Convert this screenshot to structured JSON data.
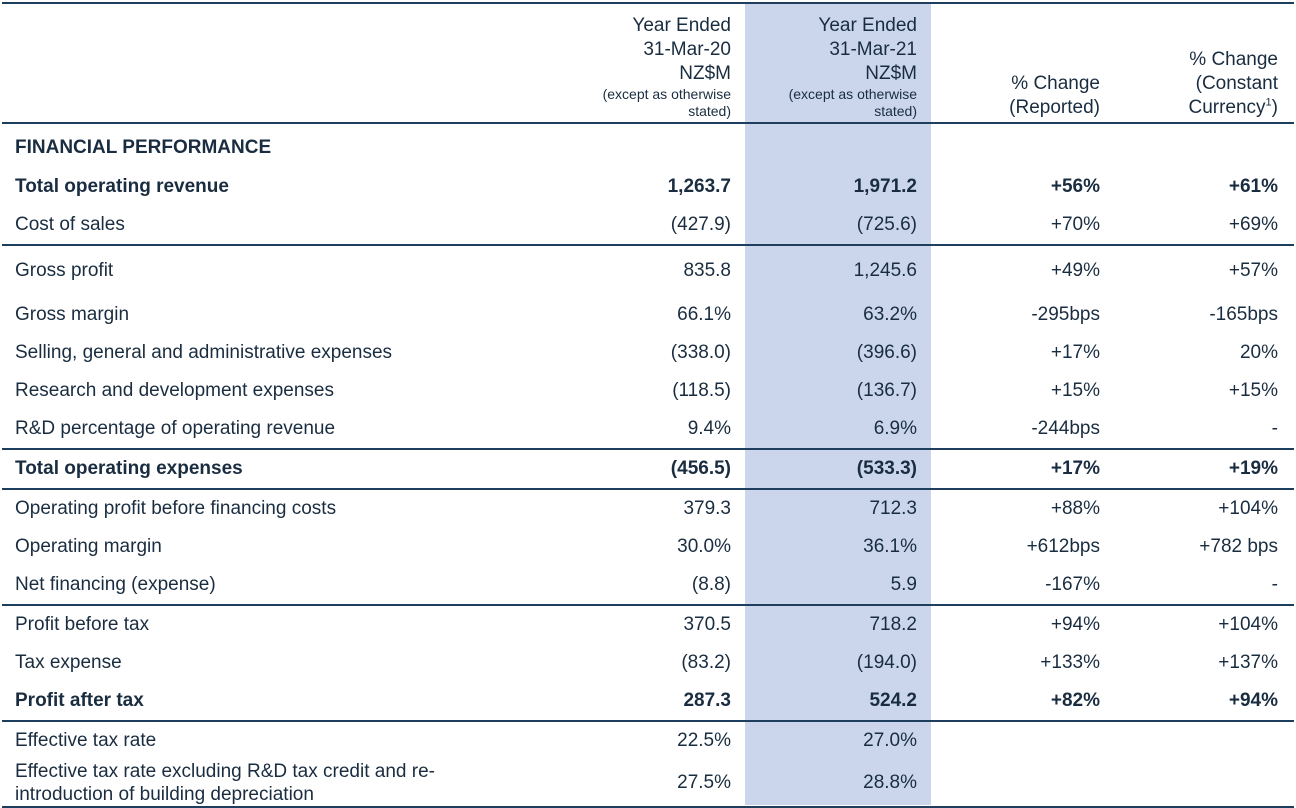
{
  "header": {
    "col_2020": {
      "l1": "Year Ended",
      "l2": "31-Mar-20",
      "l3": "NZ$M",
      "s1": "(except as otherwise",
      "s2": "stated)"
    },
    "col_2021": {
      "l1": "Year Ended",
      "l2": "31-Mar-21",
      "l3": "NZ$M",
      "s1": "(except as otherwise",
      "s2": "stated)"
    },
    "col_reported": {
      "l1": "% Change",
      "l2": "(Reported)"
    },
    "col_constant": {
      "l1": "% Change",
      "l2": "(Constant",
      "l3": "Currency",
      "sup": "1",
      "l3_end": ")"
    }
  },
  "section_title": "FINANCIAL PERFORMANCE",
  "rows": [
    {
      "label": "Total operating revenue",
      "y2020": "1,263.7",
      "y2021": "1,971.2",
      "reported": "+56%",
      "constant": "+61%"
    },
    {
      "label": "Cost of sales",
      "y2020": "(427.9)",
      "y2021": "(725.6)",
      "reported": "+70%",
      "constant": "+69%"
    },
    {
      "label": "Gross profit",
      "y2020": "835.8",
      "y2021": "1,245.6",
      "reported": "+49%",
      "constant": "+57%"
    },
    {
      "label": "Gross margin",
      "y2020": "66.1%",
      "y2021": "63.2%",
      "reported": "-295bps",
      "constant": "-165bps"
    },
    {
      "label": "Selling, general and administrative expenses",
      "y2020": "(338.0)",
      "y2021": "(396.6)",
      "reported": "+17%",
      "constant": "20%"
    },
    {
      "label": "Research and development expenses",
      "y2020": "(118.5)",
      "y2021": "(136.7)",
      "reported": "+15%",
      "constant": "+15%"
    },
    {
      "label": "R&D percentage of operating revenue",
      "y2020": "9.4%",
      "y2021": "6.9%",
      "reported": "-244bps",
      "constant": "-"
    },
    {
      "label": "Total operating expenses",
      "y2020": "(456.5)",
      "y2021": "(533.3)",
      "reported": "+17%",
      "constant": "+19%"
    },
    {
      "label": "Operating profit before financing costs",
      "y2020": "379.3",
      "y2021": "712.3",
      "reported": "+88%",
      "constant": "+104%"
    },
    {
      "label": "Operating margin",
      "y2020": "30.0%",
      "y2021": "36.1%",
      "reported": "+612bps",
      "constant": "+782 bps"
    },
    {
      "label": "Net financing (expense)",
      "y2020": "(8.8)",
      "y2021": "5.9",
      "reported": "-167%",
      "constant": "-"
    },
    {
      "label": "Profit before tax",
      "y2020": "370.5",
      "y2021": "718.2",
      "reported": "+94%",
      "constant": "+104%"
    },
    {
      "label": "Tax expense",
      "y2020": "(83.2)",
      "y2021": "(194.0)",
      "reported": "+133%",
      "constant": "+137%"
    },
    {
      "label": "Profit after tax",
      "y2020": "287.3",
      "y2021": "524.2",
      "reported": "+82%",
      "constant": "+94%"
    },
    {
      "label": "Effective tax rate",
      "y2020": "22.5%",
      "y2021": "27.0%",
      "reported": "",
      "constant": ""
    },
    {
      "label_l1": "Effective tax rate excluding R&D tax credit and re-",
      "label_l2": "introduction of building depreciation",
      "y2020": "27.5%",
      "y2021": "28.8%",
      "reported": "",
      "constant": ""
    }
  ],
  "colors": {
    "rule": "#1f3e5d",
    "highlight_column": "#cbd6ec",
    "text": "#1a2d40"
  }
}
